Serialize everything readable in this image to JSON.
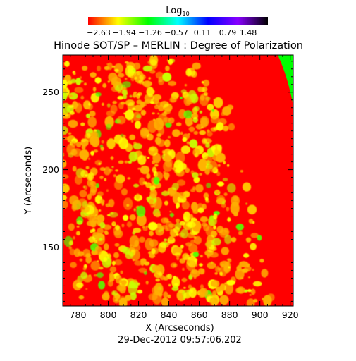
{
  "chart_data": {
    "type": "heatmap",
    "title": "Hinode SOT/SP – MERLIN : Degree of Polarization",
    "colorbar": {
      "label_base": "Log",
      "label_sub": "10",
      "tick_labels": [
        "−2.63",
        "−1.94",
        "−1.26",
        "−0.57",
        "0.11",
        "0.79",
        "1.48"
      ],
      "range": [
        -2.63,
        1.48
      ],
      "colors": [
        "#ff0000",
        "#ffff00",
        "#00ff00",
        "#00ffff",
        "#0000ff",
        "#8800ff",
        "#000000"
      ]
    },
    "xlabel": "X (Arcseconds)",
    "ylabel": "Y (Arcseconds)",
    "xlim": [
      770,
      922
    ],
    "ylim": [
      112,
      274
    ],
    "x_ticks": [
      780,
      800,
      820,
      840,
      860,
      880,
      900,
      920
    ],
    "y_ticks": [
      150,
      200,
      250
    ],
    "x_tick_labels": [
      "780",
      "800",
      "820",
      "840",
      "860",
      "880",
      "900",
      "920"
    ],
    "y_tick_labels": [
      "150",
      "200",
      "250"
    ],
    "timestamp": "29-Dec-2012 09:57:06.202",
    "background_color": "#ff0000",
    "limb_color": "#00ff00"
  }
}
